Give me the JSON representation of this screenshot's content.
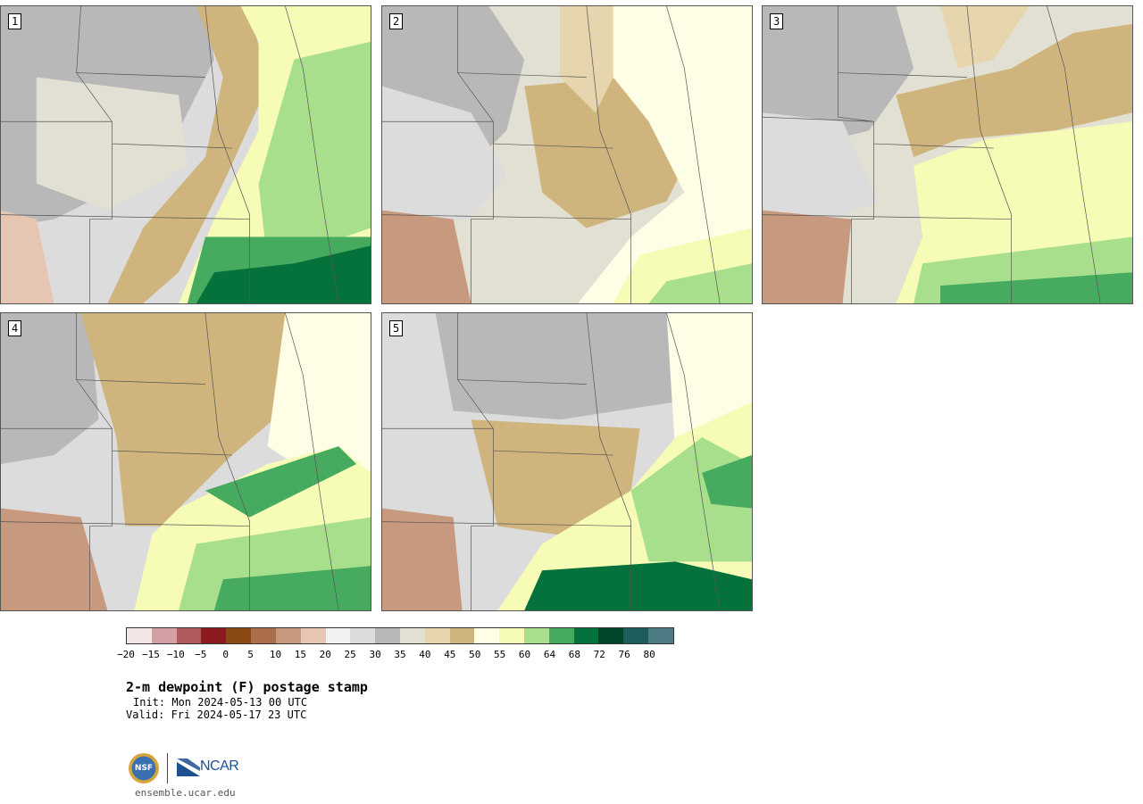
{
  "panels": [
    {
      "label": "1"
    },
    {
      "label": "2"
    },
    {
      "label": "3"
    },
    {
      "label": "4"
    },
    {
      "label": "5"
    }
  ],
  "colorbar": {
    "colors": [
      "#f3e6e6",
      "#d4a0a6",
      "#b05a60",
      "#8b1a1e",
      "#8a4a12",
      "#aa6f4a",
      "#c7997e",
      "#e6c6b2",
      "#f2f2f2",
      "#dcdcdc",
      "#b8b8b8",
      "#e1e0d2",
      "#e7d6ad",
      "#cfb57d",
      "#fefde6",
      "#f6fbb6",
      "#a8df8c",
      "#46ab5e",
      "#05723c",
      "#03452a",
      "#1f5c5c",
      "#4d7c84"
    ],
    "tick_labels": [
      "−20",
      "−15",
      "−10",
      "−5",
      "0",
      "5",
      "10",
      "15",
      "20",
      "25",
      "30",
      "35",
      "40",
      "45",
      "50",
      "55",
      "60",
      "64",
      "68",
      "72",
      "76",
      "80"
    ]
  },
  "title": "2-m dewpoint (F) postage stamp",
  "init": "Init: Mon 2024-05-13 00 UTC",
  "valid": "Valid: Fri 2024-05-17 23 UTC",
  "logo": {
    "nsf_text": "NSF",
    "ncar_text": "NCAR"
  },
  "url": "ensemble.ucar.edu"
}
